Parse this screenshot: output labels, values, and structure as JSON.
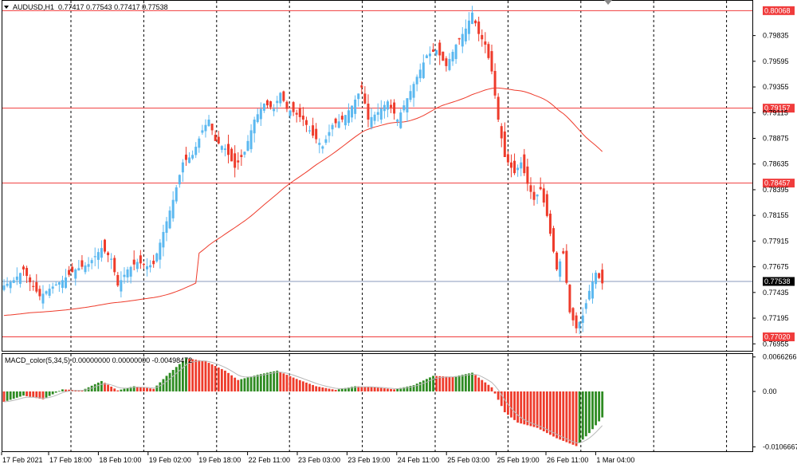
{
  "header": {
    "symbol": "AUDUSD,H1",
    "ohlc": "0.77417 0.77543 0.77417 0.77538"
  },
  "macd": {
    "label": "MACD_color(5,34,5) 0.00000000 0.00000000 -0.00498472",
    "axis_labels": [
      "0.0066266",
      "0.00",
      "-0.0106667"
    ]
  },
  "colors": {
    "bull": "#5bb8f0",
    "bear": "#ee3b2b",
    "hline": "#f03c3c",
    "ma": "#ee3b2b",
    "hist_up": "#2e8b22",
    "hist_down": "#ee3b2b",
    "signal": "#b8b8b8",
    "current_price_line": "#8899bb"
  },
  "chart_data": [
    {
      "type": "candlestick",
      "title": "AUDUSD,H1",
      "y_tick_labels": [
        "0.79835",
        "0.79595",
        "0.79355",
        "0.79115",
        "0.78875",
        "0.78635",
        "0.78395",
        "0.78155",
        "0.77915",
        "0.77675",
        "0.77435",
        "0.77195",
        "0.76955"
      ],
      "ylim": [
        0.7689,
        0.8016
      ],
      "x_tick_labels": [
        "17 Feb 2021",
        "17 Feb 18:00",
        "18 Feb 10:00",
        "19 Feb 02:00",
        "19 Feb 18:00",
        "22 Feb 11:00",
        "23 Feb 03:00",
        "23 Feb 19:00",
        "24 Feb 11:00",
        "25 Feb 03:00",
        "25 Feb 19:00",
        "26 Feb 11:00",
        "1 Mar 04:00"
      ],
      "horizontal_levels": [
        "0.80068",
        "0.79157",
        "0.78457",
        "0.77020"
      ],
      "current_price": "0.77538",
      "anchors": [
        {
          "x": 0,
          "close": 0.775
        },
        {
          "x": 3,
          "close": 0.7755
        },
        {
          "x": 6,
          "close": 0.7765
        },
        {
          "x": 8,
          "close": 0.7753
        },
        {
          "x": 11,
          "close": 0.774
        },
        {
          "x": 14,
          "close": 0.7747
        },
        {
          "x": 18,
          "close": 0.7755
        },
        {
          "x": 22,
          "close": 0.7765
        },
        {
          "x": 26,
          "close": 0.777
        },
        {
          "x": 30,
          "close": 0.7785
        },
        {
          "x": 33,
          "close": 0.7775
        },
        {
          "x": 35,
          "close": 0.775
        },
        {
          "x": 38,
          "close": 0.7765
        },
        {
          "x": 41,
          "close": 0.7772
        },
        {
          "x": 44,
          "close": 0.7768
        },
        {
          "x": 46,
          "close": 0.777
        },
        {
          "x": 49,
          "close": 0.78
        },
        {
          "x": 52,
          "close": 0.783
        },
        {
          "x": 55,
          "close": 0.7865
        },
        {
          "x": 58,
          "close": 0.7872
        },
        {
          "x": 61,
          "close": 0.7895
        },
        {
          "x": 63,
          "close": 0.7905
        },
        {
          "x": 65,
          "close": 0.7885
        },
        {
          "x": 68,
          "close": 0.7878
        },
        {
          "x": 71,
          "close": 0.786
        },
        {
          "x": 74,
          "close": 0.7875
        },
        {
          "x": 77,
          "close": 0.7905
        },
        {
          "x": 80,
          "close": 0.792
        },
        {
          "x": 83,
          "close": 0.7915
        },
        {
          "x": 85,
          "close": 0.793
        },
        {
          "x": 87,
          "close": 0.7915
        },
        {
          "x": 89,
          "close": 0.7912
        },
        {
          "x": 92,
          "close": 0.7905
        },
        {
          "x": 95,
          "close": 0.789
        },
        {
          "x": 98,
          "close": 0.788
        },
        {
          "x": 101,
          "close": 0.79
        },
        {
          "x": 104,
          "close": 0.7905
        },
        {
          "x": 107,
          "close": 0.7918
        },
        {
          "x": 110,
          "close": 0.7935
        },
        {
          "x": 112,
          "close": 0.7905
        },
        {
          "x": 115,
          "close": 0.7912
        },
        {
          "x": 118,
          "close": 0.7922
        },
        {
          "x": 121,
          "close": 0.7905
        },
        {
          "x": 124,
          "close": 0.7925
        },
        {
          "x": 127,
          "close": 0.7945
        },
        {
          "x": 130,
          "close": 0.7965
        },
        {
          "x": 133,
          "close": 0.797
        },
        {
          "x": 136,
          "close": 0.7955
        },
        {
          "x": 139,
          "close": 0.7975
        },
        {
          "x": 142,
          "close": 0.799
        },
        {
          "x": 144,
          "close": 0.8005
        },
        {
          "x": 146,
          "close": 0.7985
        },
        {
          "x": 148,
          "close": 0.7975
        },
        {
          "x": 150,
          "close": 0.795
        },
        {
          "x": 152,
          "close": 0.7905
        },
        {
          "x": 154,
          "close": 0.787
        },
        {
          "x": 157,
          "close": 0.7855
        },
        {
          "x": 159,
          "close": 0.7865
        },
        {
          "x": 161,
          "close": 0.7845
        },
        {
          "x": 163,
          "close": 0.783
        },
        {
          "x": 165,
          "close": 0.784
        },
        {
          "x": 167,
          "close": 0.7815
        },
        {
          "x": 170,
          "close": 0.7765
        },
        {
          "x": 172,
          "close": 0.778
        },
        {
          "x": 174,
          "close": 0.7725
        },
        {
          "x": 176,
          "close": 0.771
        },
        {
          "x": 178,
          "close": 0.7722
        },
        {
          "x": 180,
          "close": 0.7745
        },
        {
          "x": 182,
          "close": 0.7762
        },
        {
          "x": 184,
          "close": 0.7752
        }
      ]
    },
    {
      "type": "bar",
      "title": "MACD_color(5,34,5)",
      "ylim": [
        -0.0115,
        0.0072
      ],
      "anchors": [
        {
          "x": 0,
          "v": -0.002
        },
        {
          "x": 6,
          "v": -0.0008
        },
        {
          "x": 12,
          "v": -0.0015
        },
        {
          "x": 18,
          "v": 0.0004
        },
        {
          "x": 24,
          "v": 0.0002
        },
        {
          "x": 30,
          "v": 0.002
        },
        {
          "x": 35,
          "v": 0.0002
        },
        {
          "x": 40,
          "v": 0.001
        },
        {
          "x": 46,
          "v": 0.0005
        },
        {
          "x": 50,
          "v": 0.003
        },
        {
          "x": 56,
          "v": 0.0064
        },
        {
          "x": 62,
          "v": 0.0058
        },
        {
          "x": 68,
          "v": 0.004
        },
        {
          "x": 72,
          "v": 0.0022
        },
        {
          "x": 78,
          "v": 0.0032
        },
        {
          "x": 84,
          "v": 0.004
        },
        {
          "x": 90,
          "v": 0.0024
        },
        {
          "x": 96,
          "v": 0.001
        },
        {
          "x": 102,
          "v": 0.0003
        },
        {
          "x": 108,
          "v": 0.001
        },
        {
          "x": 114,
          "v": 0.0008
        },
        {
          "x": 120,
          "v": 0.0004
        },
        {
          "x": 126,
          "v": 0.0012
        },
        {
          "x": 132,
          "v": 0.003
        },
        {
          "x": 138,
          "v": 0.0028
        },
        {
          "x": 144,
          "v": 0.0036
        },
        {
          "x": 150,
          "v": 0.0008
        },
        {
          "x": 154,
          "v": -0.004
        },
        {
          "x": 158,
          "v": -0.006
        },
        {
          "x": 164,
          "v": -0.007
        },
        {
          "x": 170,
          "v": -0.009
        },
        {
          "x": 176,
          "v": -0.0105
        },
        {
          "x": 180,
          "v": -0.008
        },
        {
          "x": 184,
          "v": -0.005
        }
      ]
    }
  ]
}
